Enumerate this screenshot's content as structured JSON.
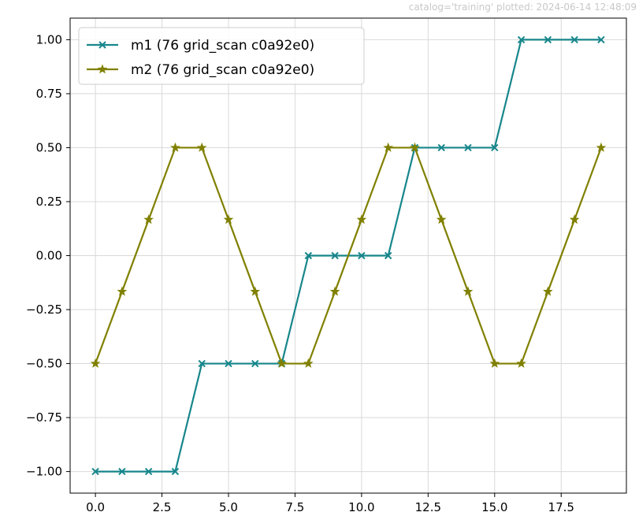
{
  "watermark": "catalog='training'  plotted: 2024-06-14 12:48:09",
  "chart_data": {
    "type": "line",
    "title": "",
    "xlabel": "",
    "ylabel": "",
    "xlim": [
      -0.95,
      19.95
    ],
    "ylim": [
      -1.1,
      1.1
    ],
    "grid": true,
    "legend_position": "top-left",
    "x_ticks": [
      "0.0",
      "2.5",
      "5.0",
      "7.5",
      "10.0",
      "12.5",
      "15.0",
      "17.5"
    ],
    "y_ticks": [
      "1.00",
      "0.75",
      "0.50",
      "0.25",
      "0.00",
      "−0.25",
      "−0.50",
      "−0.75",
      "−1.00"
    ],
    "x": [
      0,
      1,
      2,
      3,
      4,
      5,
      6,
      7,
      8,
      9,
      10,
      11,
      12,
      13,
      14,
      15,
      16,
      17,
      18,
      19
    ],
    "series": [
      {
        "name": "m1 (76 grid_scan c0a92e0)",
        "color": "#17868b",
        "marker": "x",
        "values": [
          -1,
          -1,
          -1,
          -1,
          -0.5,
          -0.5,
          -0.5,
          -0.5,
          0,
          0,
          0,
          0,
          0.5,
          0.5,
          0.5,
          0.5,
          1,
          1,
          1,
          1
        ]
      },
      {
        "name": "m2 (76 grid_scan c0a92e0)",
        "color": "#808000",
        "marker": "star",
        "values": [
          -0.5,
          -0.1667,
          0.1667,
          0.5,
          0.5,
          0.1667,
          -0.1667,
          -0.5,
          -0.5,
          -0.1667,
          0.1667,
          0.5,
          0.5,
          0.1667,
          -0.1667,
          -0.5,
          -0.5,
          -0.1667,
          0.1667,
          0.5
        ]
      }
    ]
  }
}
